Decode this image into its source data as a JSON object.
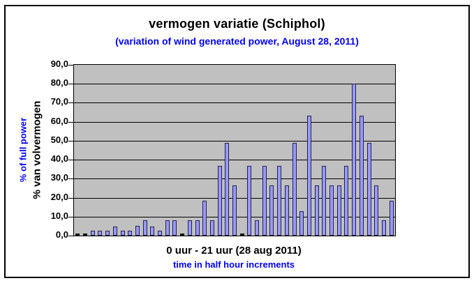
{
  "title": "vermogen variatie (Schiphol)",
  "subtitle": "(variation of wind generated power, August 28, 2011)",
  "y_axis": {
    "title_primary": "% of full power",
    "title_secondary": "% van volvermogen",
    "tick_labels": [
      "90,0",
      "80,0",
      "70,0",
      "60,0",
      "50,0",
      "40,0",
      "30,0",
      "20,0",
      "10,0",
      "0,0"
    ],
    "min": 0,
    "max": 90,
    "step": 10
  },
  "x_axis": {
    "title_primary": "0 uur - 21 uur (28 aug 2011)",
    "title_secondary": "time in half hour increments"
  },
  "colors": {
    "bar_fill": "#9999ff",
    "bar_border": "#202050",
    "zero_bar": "#141414",
    "plot_background": "#c0c0c0",
    "gridline": "#000000",
    "accent_blue": "#0000ff",
    "text": "#000000",
    "frame_border": "#000000"
  },
  "chart_data": {
    "type": "bar",
    "title": "vermogen variatie (Schiphol)",
    "subtitle": "(variation of wind generated power, August 28, 2011)",
    "xlabel": "0 uur - 21 uur (28 aug 2011), time in half hour increments",
    "ylabel": "% of full power / % van volvermogen",
    "ylim": [
      0,
      90
    ],
    "grid": true,
    "legend": false,
    "x_hours": [
      0,
      0.5,
      1,
      1.5,
      2,
      2.5,
      3,
      3.5,
      4,
      4.5,
      5,
      5.5,
      6,
      6.5,
      7,
      7.5,
      8,
      8.5,
      9,
      9.5,
      10,
      10.5,
      11,
      11.5,
      12,
      12.5,
      13,
      13.5,
      14,
      14.5,
      15,
      15.5,
      16,
      16.5,
      17,
      17.5,
      18,
      18.5,
      19,
      19.5,
      20,
      20.5,
      21
    ],
    "values": [
      0,
      0,
      2.6,
      2.6,
      2.6,
      4.6,
      2.6,
      2.6,
      5.1,
      8.0,
      4.6,
      2.6,
      8.0,
      8.0,
      0,
      8.0,
      8.0,
      18.5,
      8.0,
      36.8,
      48.7,
      26.5,
      0,
      36.8,
      8.0,
      36.8,
      26.5,
      36.8,
      26.5,
      48.7,
      12.7,
      63.0,
      26.5,
      36.8,
      26.5,
      26.5,
      36.8,
      80.0,
      63.0,
      48.7,
      26.5,
      8.0,
      18.5
    ]
  }
}
